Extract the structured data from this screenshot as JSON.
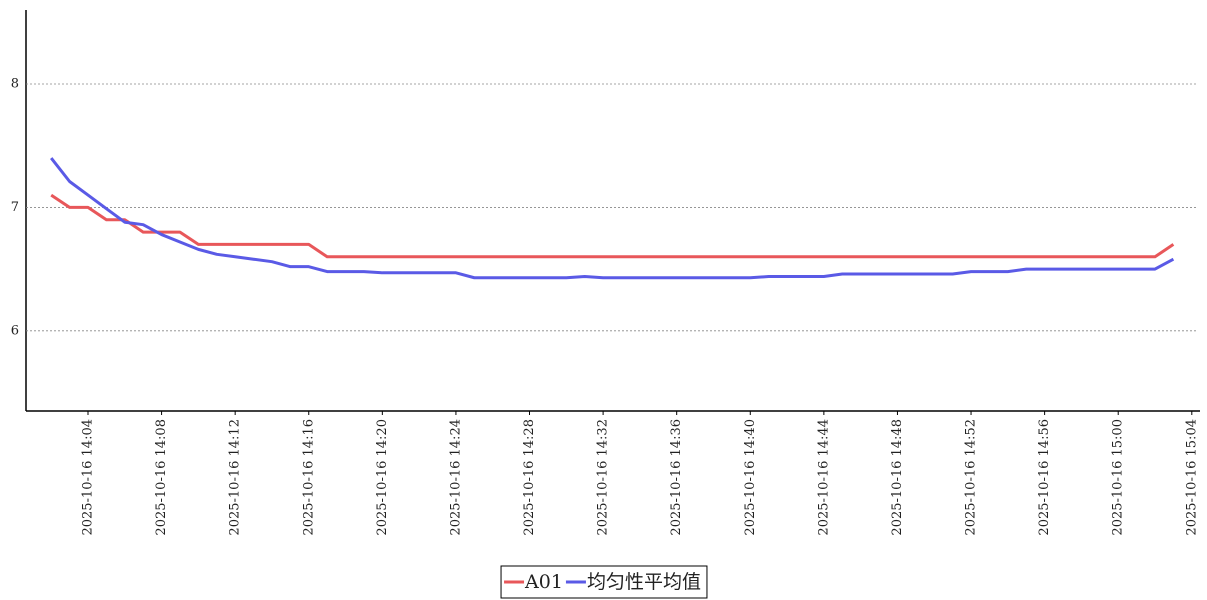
{
  "chart_data": {
    "type": "line",
    "x": [
      "2025-10-16 14:02",
      "2025-10-16 14:03",
      "2025-10-16 14:04",
      "2025-10-16 14:05",
      "2025-10-16 14:06",
      "2025-10-16 14:07",
      "2025-10-16 14:08",
      "2025-10-16 14:09",
      "2025-10-16 14:10",
      "2025-10-16 14:11",
      "2025-10-16 14:12",
      "2025-10-16 14:13",
      "2025-10-16 14:14",
      "2025-10-16 14:15",
      "2025-10-16 14:16",
      "2025-10-16 14:17",
      "2025-10-16 14:18",
      "2025-10-16 14:19",
      "2025-10-16 14:20",
      "2025-10-16 14:21",
      "2025-10-16 14:22",
      "2025-10-16 14:23",
      "2025-10-16 14:24",
      "2025-10-16 14:25",
      "2025-10-16 14:26",
      "2025-10-16 14:27",
      "2025-10-16 14:28",
      "2025-10-16 14:29",
      "2025-10-16 14:30",
      "2025-10-16 14:31",
      "2025-10-16 14:32",
      "2025-10-16 14:33",
      "2025-10-16 14:34",
      "2025-10-16 14:35",
      "2025-10-16 14:36",
      "2025-10-16 14:37",
      "2025-10-16 14:38",
      "2025-10-16 14:39",
      "2025-10-16 14:40",
      "2025-10-16 14:41",
      "2025-10-16 14:42",
      "2025-10-16 14:43",
      "2025-10-16 14:44",
      "2025-10-16 14:45",
      "2025-10-16 14:46",
      "2025-10-16 14:47",
      "2025-10-16 14:48",
      "2025-10-16 14:49",
      "2025-10-16 14:50",
      "2025-10-16 14:51",
      "2025-10-16 14:52",
      "2025-10-16 14:53",
      "2025-10-16 14:54",
      "2025-10-16 14:55",
      "2025-10-16 14:56",
      "2025-10-16 14:57",
      "2025-10-16 14:58",
      "2025-10-16 14:59",
      "2025-10-16 15:00",
      "2025-10-16 15:01",
      "2025-10-16 15:02",
      "2025-10-16 15:03"
    ],
    "series": [
      {
        "name": "A01",
        "color": "#e8575a",
        "values": [
          7.1,
          7.0,
          7.0,
          6.9,
          6.9,
          6.8,
          6.8,
          6.8,
          6.7,
          6.7,
          6.7,
          6.7,
          6.7,
          6.7,
          6.7,
          6.6,
          6.6,
          6.6,
          6.6,
          6.6,
          6.6,
          6.6,
          6.6,
          6.6,
          6.6,
          6.6,
          6.6,
          6.6,
          6.6,
          6.6,
          6.6,
          6.6,
          6.6,
          6.6,
          6.6,
          6.6,
          6.6,
          6.6,
          6.6,
          6.6,
          6.6,
          6.6,
          6.6,
          6.6,
          6.6,
          6.6,
          6.6,
          6.6,
          6.6,
          6.6,
          6.6,
          6.6,
          6.6,
          6.6,
          6.6,
          6.6,
          6.6,
          6.6,
          6.6,
          6.6,
          6.6,
          6.7
        ]
      },
      {
        "name": "均匀性平均值",
        "color": "#5a5ae6",
        "values": [
          7.4,
          7.21,
          7.1,
          6.99,
          6.88,
          6.86,
          6.78,
          6.72,
          6.66,
          6.62,
          6.6,
          6.58,
          6.56,
          6.52,
          6.52,
          6.48,
          6.48,
          6.48,
          6.47,
          6.47,
          6.47,
          6.47,
          6.47,
          6.43,
          6.43,
          6.43,
          6.43,
          6.43,
          6.43,
          6.44,
          6.43,
          6.43,
          6.43,
          6.43,
          6.43,
          6.43,
          6.43,
          6.43,
          6.43,
          6.44,
          6.44,
          6.44,
          6.44,
          6.46,
          6.46,
          6.46,
          6.46,
          6.46,
          6.46,
          6.46,
          6.48,
          6.48,
          6.48,
          6.5,
          6.5,
          6.5,
          6.5,
          6.5,
          6.5,
          6.5,
          6.5,
          6.58
        ]
      }
    ],
    "xlim": [
      "2025-10-16 14:01",
      "2025-10-16 15:04"
    ],
    "xticks": [
      "2025-10-16 14:04",
      "2025-10-16 14:08",
      "2025-10-16 14:12",
      "2025-10-16 14:16",
      "2025-10-16 14:20",
      "2025-10-16 14:24",
      "2025-10-16 14:28",
      "2025-10-16 14:32",
      "2025-10-16 14:36",
      "2025-10-16 14:40",
      "2025-10-16 14:44",
      "2025-10-16 14:48",
      "2025-10-16 14:52",
      "2025-10-16 14:56",
      "2025-10-16 15:00",
      "2025-10-16 15:04"
    ],
    "ylim": [
      5.35,
      8.6
    ],
    "yticks": [
      6,
      7,
      8
    ],
    "grid": true,
    "legend": "bottom"
  }
}
